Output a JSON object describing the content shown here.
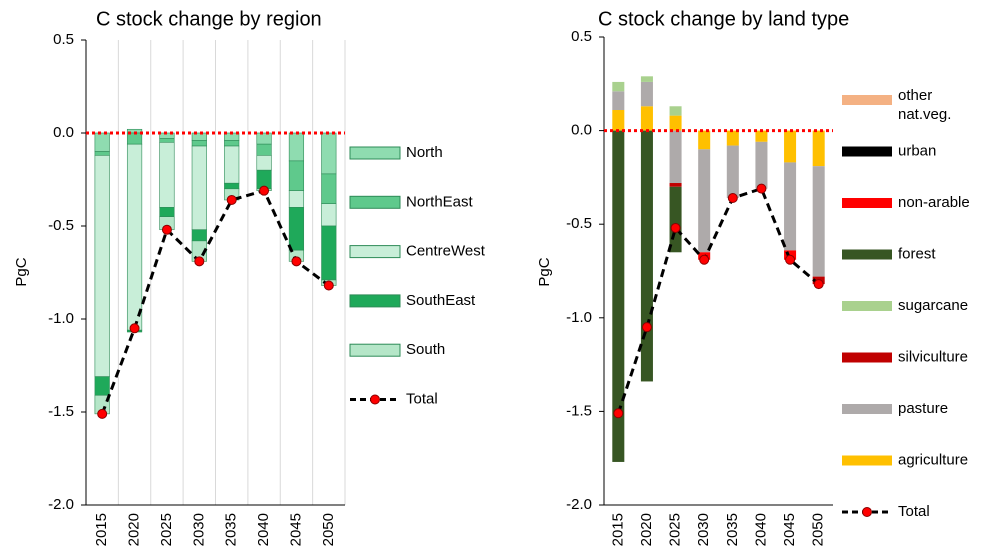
{
  "chart_data": [
    {
      "type": "bar",
      "stacked": true,
      "title": "C stock change by region",
      "ylabel": "PgC",
      "categories": [
        "2015",
        "2020",
        "2025",
        "2030",
        "2035",
        "2040",
        "2045",
        "2050"
      ],
      "ylim": [
        -2,
        0.5
      ],
      "yticks": [
        {
          "value": -2,
          "label": "-2.0"
        },
        -1.5,
        {
          "value": -1,
          "label": "-1.0"
        },
        -0.5,
        {
          "value": 0,
          "label": "0.0"
        },
        0.5
      ],
      "xgrid": true,
      "legend": "right",
      "stack_order": "legend",
      "hline": {
        "value": 0,
        "color": "#ff0000"
      },
      "series": [
        {
          "name": "North",
          "color": "#8fdcb0",
          "values": [
            -0.1,
            0.02,
            -0.03,
            -0.04,
            -0.04,
            -0.06,
            -0.15,
            -0.22
          ]
        },
        {
          "name": "NorthEast",
          "color": "#5fc98c",
          "values": [
            -0.02,
            -0.06,
            -0.02,
            -0.03,
            -0.03,
            -0.06,
            -0.16,
            -0.16
          ]
        },
        {
          "name": "CentreWest",
          "color": "#c8eed8",
          "values": [
            -1.19,
            -1.0,
            -0.35,
            -0.45,
            -0.2,
            -0.08,
            -0.09,
            -0.12
          ]
        },
        {
          "name": "SouthEast",
          "color": "#1fa95a",
          "values": [
            -0.1,
            -0.01,
            -0.05,
            -0.06,
            -0.03,
            -0.1,
            -0.23,
            -0.29
          ]
        },
        {
          "name": "South",
          "color": "#b5e6c8",
          "values": [
            -0.1,
            0,
            -0.07,
            -0.11,
            -0.06,
            -0.01,
            -0.06,
            -0.03
          ]
        },
        {
          "name": "Total",
          "type": "line",
          "color": "#000000",
          "marker_color": "#ff0000",
          "values": [
            -1.51,
            -1.05,
            -0.52,
            -0.69,
            -0.36,
            -0.31,
            -0.69,
            -0.82
          ]
        }
      ]
    },
    {
      "type": "bar",
      "stacked": true,
      "title": "C stock change by land type",
      "ylabel": "PgC",
      "categories": [
        "2015",
        "2020",
        "2025",
        "2030",
        "2035",
        "2040",
        "2045",
        "2050"
      ],
      "ylim": [
        -2,
        0.5
      ],
      "yticks": [
        {
          "value": -2,
          "label": "-2.0"
        },
        -1.5,
        {
          "value": -1,
          "label": "-1.0"
        },
        -0.5,
        {
          "value": 0,
          "label": "0.0"
        },
        0.5
      ],
      "xgrid": false,
      "legend": "right",
      "stack_order": "reverse",
      "hline": {
        "value": 0,
        "color": "#ff0000"
      },
      "series": [
        {
          "name": "other nat.veg.",
          "color": "#f4b183",
          "values": [
            0,
            0,
            0,
            0,
            0,
            0,
            0,
            0
          ]
        },
        {
          "name": "urban",
          "color": "#000000",
          "values": [
            0,
            0,
            0,
            0,
            0,
            0,
            0,
            0
          ]
        },
        {
          "name": "non-arable",
          "color": "#ff0000",
          "values": [
            0,
            0,
            0,
            -0.04,
            0,
            0,
            -0.05,
            0
          ]
        },
        {
          "name": "forest",
          "color": "#375623",
          "values": [
            -1.77,
            -1.34,
            -0.35,
            0,
            0,
            0,
            0,
            0
          ]
        },
        {
          "name": "sugarcane",
          "color": "#a9d18e",
          "values": [
            0.05,
            0.03,
            0.05,
            0,
            0,
            0,
            0,
            0
          ]
        },
        {
          "name": "silviculture",
          "color": "#c00000",
          "values": [
            0,
            0,
            -0.02,
            0,
            0,
            0,
            0,
            -0.04
          ]
        },
        {
          "name": "pasture",
          "color": "#aeaaaa",
          "values": [
            0.1,
            0.13,
            -0.28,
            -0.55,
            -0.28,
            -0.25,
            -0.47,
            -0.59
          ]
        },
        {
          "name": "agriculture",
          "color": "#ffc000",
          "values": [
            0.11,
            0.13,
            0.08,
            -0.1,
            -0.08,
            -0.06,
            -0.17,
            -0.19
          ]
        },
        {
          "name": "Total",
          "type": "line",
          "color": "#000000",
          "marker_color": "#ff0000",
          "values": [
            -1.51,
            -1.05,
            -0.52,
            -0.69,
            -0.36,
            -0.31,
            -0.69,
            -0.82
          ]
        }
      ]
    }
  ]
}
